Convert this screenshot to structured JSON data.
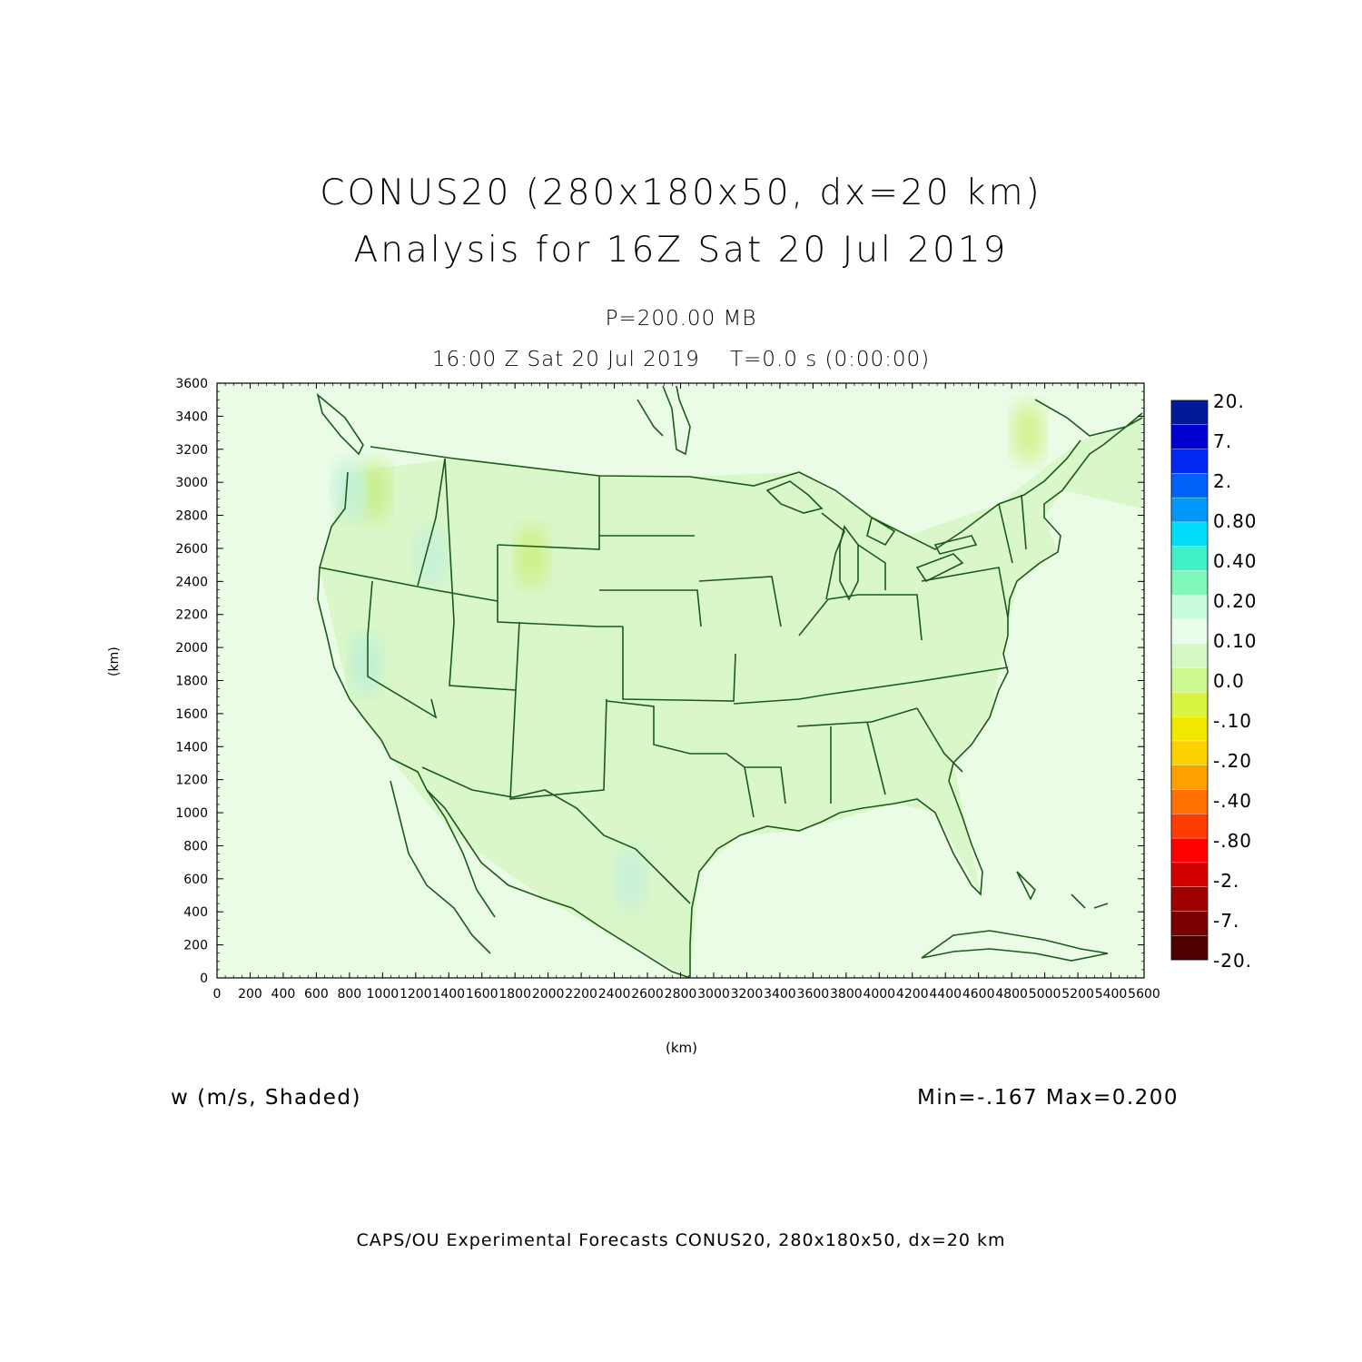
{
  "header": {
    "title_line1": "CONUS20 (280x180x50, dx=20 km)",
    "title_line2": "Analysis for 16Z Sat 20 Jul 2019",
    "level": "P=200.00 MB",
    "time": "16:00 Z Sat 20 Jul 2019    T=0.0 s (0:00:00)"
  },
  "axes": {
    "xlabel": "(km)",
    "ylabel": "(km)",
    "x_ticks": [
      0,
      200,
      400,
      600,
      800,
      1000,
      1200,
      1400,
      1600,
      1800,
      2000,
      2200,
      2400,
      2600,
      2800,
      3000,
      3200,
      3400,
      3600,
      3800,
      4000,
      4200,
      4400,
      4600,
      4800,
      5000,
      5200,
      5400,
      5600
    ],
    "y_ticks": [
      0,
      200,
      400,
      600,
      800,
      1000,
      1200,
      1400,
      1600,
      1800,
      2000,
      2200,
      2400,
      2600,
      2800,
      3000,
      3200,
      3400,
      3600
    ],
    "xlim": [
      0,
      5600
    ],
    "ylim": [
      0,
      3600
    ]
  },
  "field_label": "w (m/s, Shaded)",
  "min_max": "Min=-.167 Max=0.200",
  "footer": "CAPS/OU Experimental Forecasts  CONUS20, 280x180x50, dx=20 km",
  "colorbar": {
    "labels": [
      "20.",
      "7.",
      "2.",
      "0.80",
      "0.40",
      "0.20",
      "0.10",
      "0.0",
      "-.10",
      "-.20",
      "-.40",
      "-.80",
      "-2.",
      "-7.",
      "-20."
    ],
    "colors": [
      "#001a9a",
      "#0000d0",
      "#0028f0",
      "#0060f8",
      "#0096fa",
      "#00dcfa",
      "#40f0c8",
      "#80f8b8",
      "#c8fcdc",
      "#eafcea",
      "#d6f8c4",
      "#ccf890",
      "#d8f440",
      "#f0e800",
      "#ffd000",
      "#ffa000",
      "#ff7000",
      "#ff3c00",
      "#ff0000",
      "#d20000",
      "#a00000",
      "#780000",
      "#500000"
    ]
  },
  "chart_data": {
    "type": "heatmap",
    "xlabel": "(km)",
    "ylabel": "(km)",
    "xlim": [
      0,
      5600
    ],
    "ylim": [
      0,
      3600
    ],
    "value_range": {
      "min": -0.167,
      "max": 0.2
    },
    "background_color": "#eafce6",
    "land_color": "#d6f6c2",
    "boundary_color": "#1a5a1a",
    "highlights": [
      {
        "x": 950,
        "y": 2950,
        "value": -0.1,
        "color": "#c8ee88"
      },
      {
        "x": 800,
        "y": 2950,
        "value": 0.1,
        "color": "#bff0d8"
      },
      {
        "x": 1900,
        "y": 2550,
        "value": -0.1,
        "color": "#cdef80"
      },
      {
        "x": 900,
        "y": 1900,
        "value": 0.1,
        "color": "#bcefd6"
      },
      {
        "x": 1300,
        "y": 2550,
        "value": 0.1,
        "color": "#c4f0dc"
      },
      {
        "x": 4900,
        "y": 3300,
        "value": -0.1,
        "color": "#d2f088"
      },
      {
        "x": 2500,
        "y": 600,
        "value": 0.1,
        "color": "#c6eedc"
      }
    ]
  }
}
